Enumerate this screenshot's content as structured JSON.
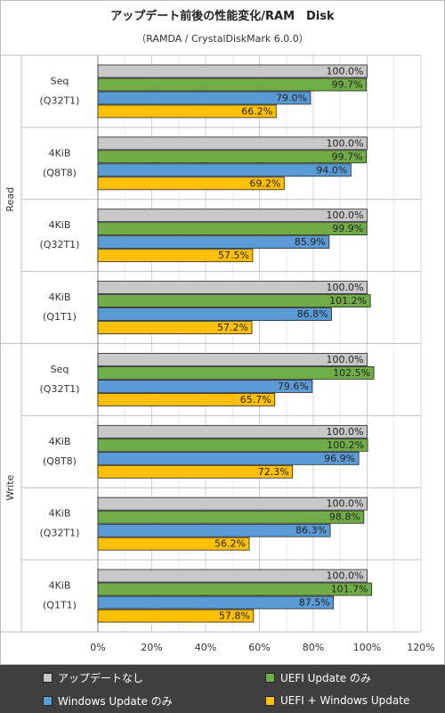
{
  "chart_data": {
    "type": "bar",
    "orientation": "horizontal",
    "title": "アップデート前後の性能変化/RAM　Disk",
    "subtitle": "（RAMDA / CrystalDiskMark 6.0.0）",
    "xlim": [
      0,
      120
    ],
    "x_ticks": [
      "0%",
      "20%",
      "40%",
      "60%",
      "80%",
      "100%",
      "120%"
    ],
    "grid": true,
    "legend_position": "bottom",
    "groups": [
      {
        "label": "Read",
        "categories": [
          {
            "line1": "Seq",
            "line2": "(Q32T1)"
          },
          {
            "line1": "4KiB",
            "line2": "(Q8T8)"
          },
          {
            "line1": "4KiB",
            "line2": "(Q32T1)"
          },
          {
            "line1": "4KiB",
            "line2": "(Q1T1)"
          }
        ]
      },
      {
        "label": "Write",
        "categories": [
          {
            "line1": "Seq",
            "line2": "(Q32T1)"
          },
          {
            "line1": "4KiB",
            "line2": "(Q8T8)"
          },
          {
            "line1": "4KiB",
            "line2": "(Q32T1)"
          },
          {
            "line1": "4KiB",
            "line2": "(Q1T1)"
          }
        ]
      }
    ],
    "series": [
      {
        "name": "アップデートなし",
        "color": "#c8c8c8",
        "values": [
          100.0,
          100.0,
          100.0,
          100.0,
          100.0,
          100.0,
          100.0,
          100.0
        ]
      },
      {
        "name": "UEFI Update のみ",
        "color": "#70ad47",
        "values": [
          99.7,
          99.7,
          99.9,
          101.2,
          102.5,
          100.2,
          98.8,
          101.7
        ]
      },
      {
        "name": "Windows Update のみ",
        "color": "#5b9bd5",
        "values": [
          79.0,
          94.0,
          85.9,
          86.8,
          79.6,
          96.9,
          86.3,
          87.5
        ]
      },
      {
        "name": "UEFI + Windows Update",
        "color": "#ffc000",
        "values": [
          66.2,
          69.2,
          57.5,
          57.2,
          65.7,
          72.3,
          56.2,
          57.8
        ]
      }
    ],
    "value_suffix": "%"
  }
}
